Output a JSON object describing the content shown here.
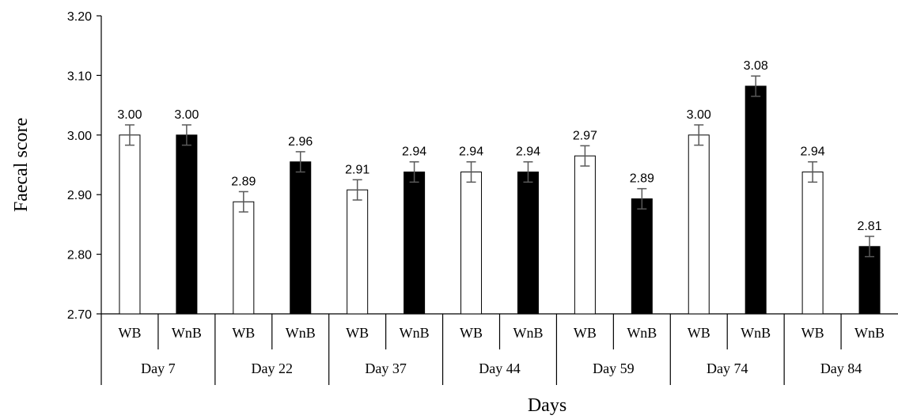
{
  "chart_data": {
    "type": "bar",
    "title": "",
    "xlabel": "Days",
    "ylabel": "Faecal score",
    "ylim": [
      2.7,
      3.2
    ],
    "yticks": [
      "2.70",
      "2.80",
      "2.90",
      "3.00",
      "3.10",
      "3.20"
    ],
    "grid": false,
    "groups": [
      "Day 7",
      "Day 22",
      "Day 37",
      "Day 44",
      "Day 59",
      "Day 74",
      "Day 84"
    ],
    "subcategories": [
      "WB",
      "WnB"
    ],
    "series": [
      {
        "key": "WB",
        "fill": "#ffffff",
        "values": [
          3.0,
          2.888,
          2.908,
          2.938,
          2.965,
          3.0,
          2.938
        ],
        "labels": [
          "3.00",
          "2.89",
          "2.91",
          "2.94",
          "2.97",
          "3.00",
          "2.94"
        ],
        "error": [
          0.017,
          0.017,
          0.017,
          0.017,
          0.017,
          0.017,
          0.017
        ]
      },
      {
        "key": "WnB",
        "fill": "#000000",
        "values": [
          3.0,
          2.955,
          2.938,
          2.938,
          2.893,
          3.082,
          2.813
        ],
        "labels": [
          "3.00",
          "2.96",
          "2.94",
          "2.94",
          "2.89",
          "3.08",
          "2.81"
        ],
        "error": [
          0.017,
          0.017,
          0.017,
          0.017,
          0.017,
          0.017,
          0.017
        ]
      }
    ],
    "colors": {
      "axis": "#000000",
      "errorbar": "#595959"
    }
  }
}
